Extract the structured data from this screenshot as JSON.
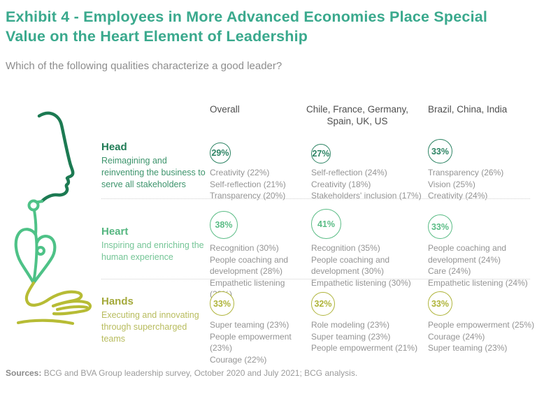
{
  "header": {
    "title": "Exhibit 4 - Employees in More Advanced Economies Place Special Value on the Heart Element of Leadership",
    "subtitle": "Which of the following qualities characterize a good leader?"
  },
  "columns": [
    {
      "label": "Overall"
    },
    {
      "label": "Chile, France, Germany, Spain, UK, US"
    },
    {
      "label": "Brazil, China, India"
    }
  ],
  "rows": [
    {
      "id": "head",
      "label": "Head",
      "description": "Reimagining and reinventing the business to serve all stakeholders",
      "colors": {
        "label": "#1f7b55",
        "description": "#3d946c",
        "circle": "#2d8464"
      },
      "cells": [
        {
          "pct": "29%",
          "value": 29,
          "qualities": [
            "Creativity (22%)",
            "Self-reflection (21%)",
            "Transparency (20%)"
          ]
        },
        {
          "pct": "27%",
          "value": 27,
          "qualities": [
            "Self-reflection (24%)",
            "Creativity (18%)",
            "Stakeholders' inclusion (17%)"
          ]
        },
        {
          "pct": "33%",
          "value": 33,
          "qualities": [
            "Transparency (26%)",
            "Vision (25%)",
            "Creativity (24%)"
          ]
        }
      ]
    },
    {
      "id": "heart",
      "label": "Heart",
      "description": "Inspiring and enriching the human experience",
      "colors": {
        "label": "#55b680",
        "description": "#74c596",
        "circle": "#5abc85"
      },
      "cells": [
        {
          "pct": "38%",
          "value": 38,
          "qualities": [
            "Recognition (30%)",
            "People coaching and development (28%)",
            "Empathetic listening (28%)"
          ]
        },
        {
          "pct": "41%",
          "value": 41,
          "qualities": [
            "Recognition (35%)",
            "People coaching and development (30%)",
            "Empathetic listening (30%)"
          ]
        },
        {
          "pct": "33%",
          "value": 33,
          "qualities": [
            "People coaching and development (24%)",
            "Care (24%)",
            "Empathetic listening (24%)"
          ]
        }
      ]
    },
    {
      "id": "hands",
      "label": "Hands",
      "description": "Executing and innovating through supercharged teams",
      "colors": {
        "label": "#a4a93a",
        "description": "#b8bc5e",
        "circle": "#afb43a"
      },
      "cells": [
        {
          "pct": "33%",
          "value": 33,
          "qualities": [
            "Super teaming (23%)",
            "People empowerment (23%)",
            "Courage (22%)"
          ]
        },
        {
          "pct": "32%",
          "value": 32,
          "qualities": [
            "Role modeling (23%)",
            "Super teaming (23%)",
            "People empowerment (21%)"
          ]
        },
        {
          "pct": "33%",
          "value": 33,
          "qualities": [
            "People empowerment (25%)",
            "Courage (24%)",
            "Super teaming (23%)"
          ]
        }
      ]
    }
  ],
  "illustration": {
    "head_color": "#1c7a52",
    "heart_color": "#4ec287",
    "hands_color": "#b7bc35"
  },
  "footer": {
    "sources_label": "Sources:",
    "sources_text": " BCG and BVA Group leadership survey, October 2020 and July 2021; BCG analysis."
  },
  "chart_data": {
    "type": "table",
    "title": "Exhibit 4 - Employees in More Advanced Economies Place Special Value on the Heart Element of Leadership",
    "subtitle": "Which of the following qualities characterize a good leader?",
    "columns": [
      "Overall",
      "Chile, France, Germany, Spain, UK, US",
      "Brazil, China, India"
    ],
    "rows": [
      "Head",
      "Heart",
      "Hands"
    ],
    "values_pct": [
      [
        29,
        27,
        33
      ],
      [
        38,
        41,
        33
      ],
      [
        33,
        32,
        33
      ]
    ],
    "top_qualities": [
      [
        [
          "Creativity (22%)",
          "Self-reflection (21%)",
          "Transparency (20%)"
        ],
        [
          "Self-reflection (24%)",
          "Creativity (18%)",
          "Stakeholders' inclusion (17%)"
        ],
        [
          "Transparency (26%)",
          "Vision (25%)",
          "Creativity (24%)"
        ]
      ],
      [
        [
          "Recognition (30%)",
          "People coaching and development (28%)",
          "Empathetic listening (28%)"
        ],
        [
          "Recognition (35%)",
          "People coaching and development (30%)",
          "Empathetic listening (30%)"
        ],
        [
          "People coaching and development (24%)",
          "Care (24%)",
          "Empathetic listening (24%)"
        ]
      ],
      [
        [
          "Super teaming (23%)",
          "People empowerment (23%)",
          "Courage (22%)"
        ],
        [
          "Role modeling (23%)",
          "Super teaming (23%)",
          "People empowerment (21%)"
        ],
        [
          "People empowerment (25%)",
          "Courage (24%)",
          "Super teaming (23%)"
        ]
      ]
    ],
    "note": "circle diameter proportional to percentage"
  }
}
